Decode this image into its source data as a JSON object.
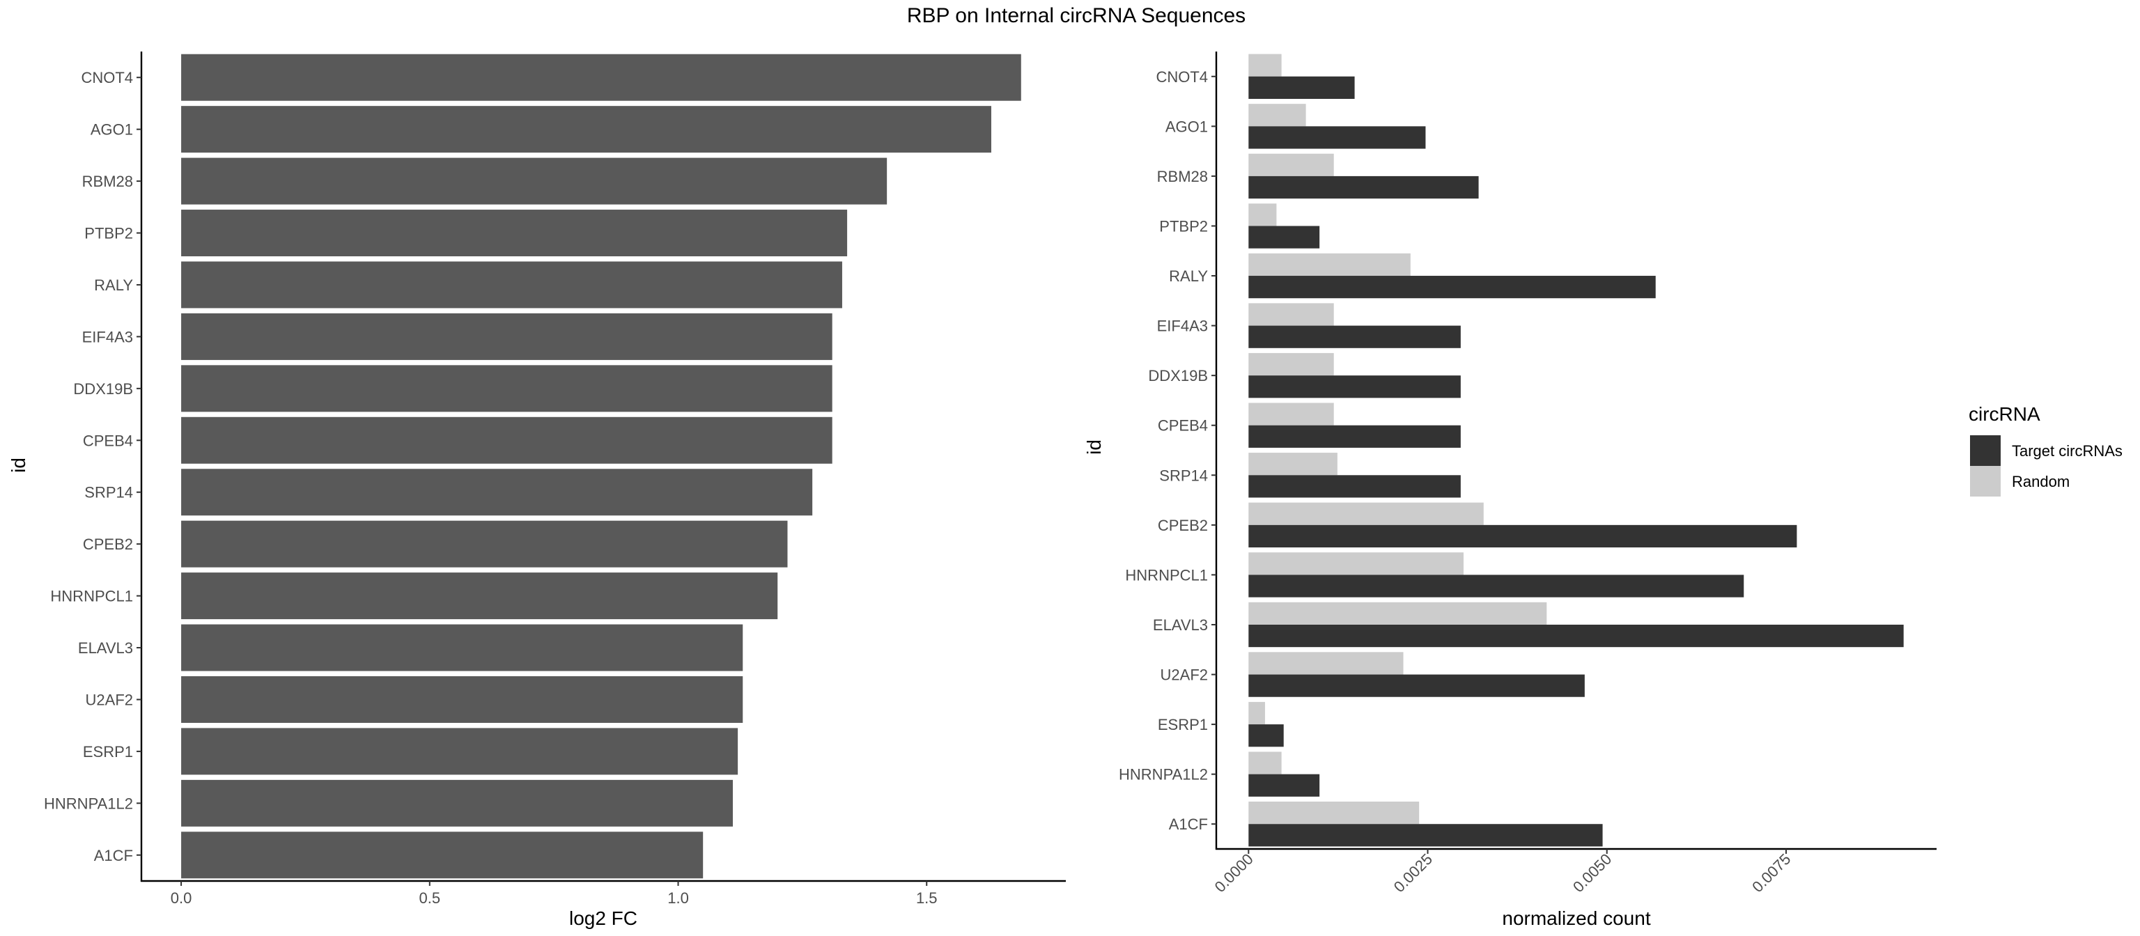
{
  "title": "RBP on Internal circRNA Sequences",
  "chart_data": [
    {
      "type": "bar",
      "orientation": "horizontal",
      "categories": [
        "CNOT4",
        "AGO1",
        "RBM28",
        "PTBP2",
        "RALY",
        "EIF4A3",
        "DDX19B",
        "CPEB4",
        "SRP14",
        "CPEB2",
        "HNRNPCL1",
        "ELAVL3",
        "U2AF2",
        "ESRP1",
        "HNRNPA1L2",
        "A1CF"
      ],
      "values": [
        1.69,
        1.63,
        1.42,
        1.34,
        1.33,
        1.31,
        1.31,
        1.31,
        1.27,
        1.22,
        1.2,
        1.13,
        1.13,
        1.12,
        1.11,
        1.05
      ],
      "xlabel": "log2 FC",
      "ylabel": "id",
      "xlim": [
        -0.08,
        1.78
      ],
      "xticks": [
        0.0,
        0.5,
        1.0,
        1.5
      ],
      "xtick_labels": [
        "0.0",
        "0.5",
        "1.0",
        "1.5"
      ],
      "color": "#595959",
      "grid": false
    },
    {
      "type": "bar",
      "orientation": "horizontal",
      "grouped": true,
      "categories": [
        "CNOT4",
        "AGO1",
        "RBM28",
        "PTBP2",
        "RALY",
        "EIF4A3",
        "DDX19B",
        "CPEB4",
        "SRP14",
        "CPEB2",
        "HNRNPCL1",
        "ELAVL3",
        "U2AF2",
        "ESRP1",
        "HNRNPA1L2",
        "A1CF"
      ],
      "series": [
        {
          "name": "Target circRNAs",
          "color": "#333333",
          "values": [
            0.00148,
            0.00247,
            0.00321,
            0.00099,
            0.00568,
            0.00296,
            0.00296,
            0.00296,
            0.00296,
            0.00765,
            0.00691,
            0.00914,
            0.00469,
            0.00049,
            0.00099,
            0.00494
          ]
        },
        {
          "name": "Random",
          "color": "#cccccc",
          "values": [
            0.00046,
            0.0008,
            0.00119,
            0.00039,
            0.00226,
            0.00119,
            0.00119,
            0.00119,
            0.00124,
            0.00328,
            0.003,
            0.00416,
            0.00216,
            0.00023,
            0.00046,
            0.00238
          ]
        }
      ],
      "xlabel": "normalized count",
      "ylabel": "id",
      "xlim": [
        -0.00045,
        0.0096
      ],
      "xticks": [
        0.0,
        0.0025,
        0.005,
        0.0075
      ],
      "xtick_labels": [
        "0.0000",
        "0.0025",
        "0.0050",
        "0.0075"
      ],
      "legend_title": "circRNA",
      "legend_position": "right",
      "grid": false
    }
  ]
}
